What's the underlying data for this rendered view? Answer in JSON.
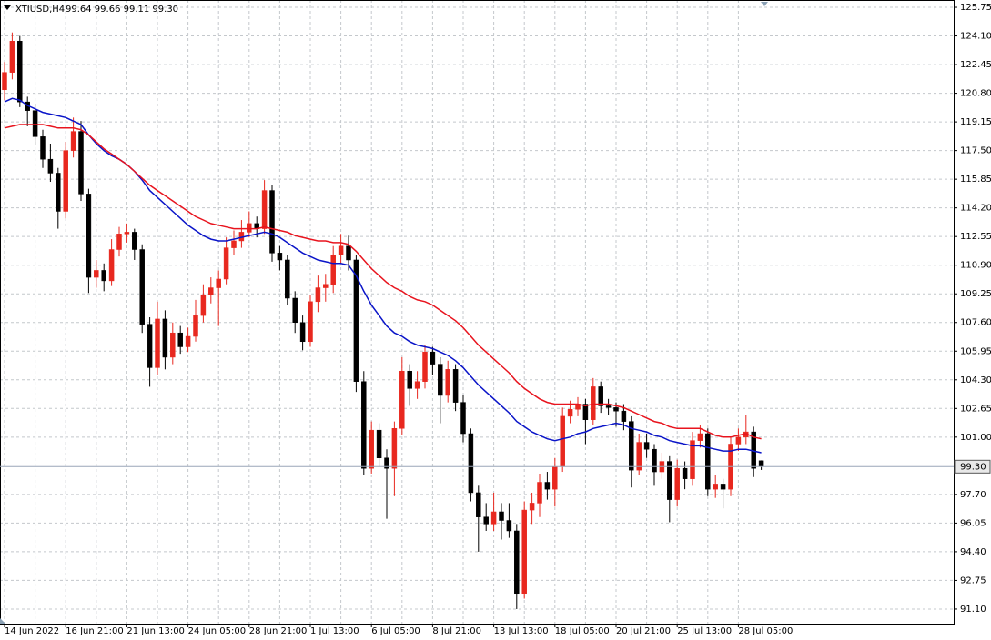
{
  "chart_data": {
    "type": "candlestick",
    "title": "XTIUSD,H4",
    "subtitle": "99.64 99.66 99.11 99.30",
    "categories": [
      "14 Jun 2022",
      null,
      null,
      null,
      null,
      null,
      null,
      null,
      "16 Jun 21:00",
      null,
      null,
      null,
      null,
      null,
      null,
      null,
      "21 Jun 13:00",
      null,
      null,
      null,
      null,
      null,
      null,
      null,
      "24 Jun 05:00",
      null,
      null,
      null,
      null,
      null,
      null,
      null,
      "28 Jun 21:00",
      null,
      null,
      null,
      null,
      null,
      null,
      null,
      "1 Jul 13:00",
      null,
      null,
      null,
      null,
      null,
      null,
      null,
      "6 Jul 05:00",
      null,
      null,
      null,
      null,
      null,
      null,
      null,
      "8 Jul 21:00",
      null,
      null,
      null,
      null,
      null,
      null,
      null,
      "13 Jul 13:00",
      null,
      null,
      null,
      null,
      null,
      null,
      null,
      "18 Jul 05:00",
      null,
      null,
      null,
      null,
      null,
      null,
      null,
      "20 Jul 21:00",
      null,
      null,
      null,
      null,
      null,
      null,
      null,
      "25 Jul 13:00",
      null,
      null,
      null,
      null,
      null,
      null,
      null,
      "28 Jul 05:00",
      null,
      null,
      null
    ],
    "open": [
      121.0,
      122.0,
      123.8,
      120.3,
      119.8,
      118.3,
      117.0,
      116.2,
      114.0,
      117.5,
      118.6,
      115.0,
      110.2,
      110.6,
      110.0,
      111.8,
      112.7,
      112.8,
      111.8,
      107.5,
      105.0,
      107.8,
      105.6,
      107.0,
      106.2,
      106.8,
      108.0,
      109.2,
      109.6,
      110.1,
      111.9,
      112.3,
      112.8,
      113.3,
      113.0,
      115.2,
      111.6,
      111.2,
      109.0,
      107.6,
      106.5,
      108.8,
      109.6,
      109.8,
      111.5,
      112.0,
      111.2,
      104.2,
      99.2,
      101.4,
      99.8,
      99.2,
      101.5,
      104.8,
      103.8,
      104.2,
      105.9,
      105.2,
      103.4,
      104.9,
      103.0,
      101.2,
      97.8,
      96.4,
      96.0,
      96.7,
      96.2,
      95.6,
      92.0,
      96.8,
      97.2,
      98.4,
      98.0,
      99.3,
      102.2,
      102.6,
      102.9,
      102.0,
      103.9,
      102.8,
      102.7,
      102.5,
      101.9,
      99.1,
      100.7,
      100.3,
      99.0,
      99.6,
      97.4,
      99.2,
      98.6,
      100.8,
      101.2,
      98.0,
      98.3,
      98.0,
      100.6,
      101.0,
      101.3,
      99.64
    ],
    "high": [
      122.6,
      124.3,
      124.1,
      120.6,
      120.2,
      118.7,
      117.9,
      116.5,
      118.0,
      119.4,
      119.2,
      115.3,
      111.2,
      111.0,
      112.4,
      113.1,
      113.3,
      113.0,
      112.1,
      107.9,
      108.8,
      108.3,
      107.6,
      107.4,
      107.3,
      108.9,
      109.8,
      110.2,
      110.6,
      112.5,
      112.9,
      113.5,
      114.0,
      113.7,
      115.8,
      115.5,
      112.0,
      111.5,
      109.4,
      108.0,
      109.2,
      110.3,
      110.4,
      112.0,
      112.7,
      112.6,
      111.5,
      104.8,
      101.9,
      101.8,
      100.3,
      101.9,
      105.6,
      105.2,
      104.8,
      106.3,
      106.2,
      105.6,
      105.4,
      105.2,
      103.4,
      101.5,
      98.2,
      97.2,
      97.8,
      97.2,
      97.2,
      96.0,
      97.3,
      97.8,
      98.9,
      99.0,
      99.8,
      102.7,
      103.1,
      103.3,
      103.2,
      104.4,
      104.2,
      103.2,
      103.0,
      102.9,
      102.2,
      101.2,
      101.2,
      100.6,
      100.1,
      99.9,
      99.7,
      99.6,
      101.3,
      101.7,
      101.5,
      98.8,
      98.6,
      101.0,
      101.5,
      102.3,
      101.6,
      99.66
    ],
    "low": [
      120.4,
      121.6,
      120.0,
      118.9,
      117.8,
      116.5,
      115.7,
      113.0,
      113.6,
      117.1,
      114.6,
      109.3,
      109.6,
      109.4,
      109.7,
      111.4,
      112.2,
      111.2,
      107.0,
      103.9,
      104.6,
      104.9,
      105.2,
      105.8,
      105.9,
      106.5,
      107.6,
      108.7,
      107.4,
      109.8,
      111.5,
      111.9,
      112.5,
      112.5,
      112.7,
      111.1,
      110.6,
      108.6,
      107.0,
      106.0,
      106.2,
      108.2,
      108.8,
      109.3,
      111.0,
      110.6,
      103.6,
      98.8,
      98.9,
      99.3,
      96.3,
      97.6,
      101.1,
      102.8,
      103.2,
      103.8,
      104.6,
      101.8,
      103.0,
      102.5,
      100.7,
      97.3,
      94.4,
      95.6,
      95.6,
      95.1,
      95.2,
      91.1,
      91.7,
      96.0,
      96.4,
      97.4,
      97.0,
      99.0,
      101.8,
      102.2,
      100.6,
      101.7,
      102.4,
      102.3,
      101.6,
      101.4,
      98.1,
      98.8,
      99.8,
      98.2,
      98.6,
      96.1,
      97.0,
      98.0,
      98.2,
      100.4,
      97.6,
      97.5,
      96.9,
      97.6,
      100.2,
      100.6,
      98.7,
      99.11
    ],
    "close": [
      122.0,
      123.8,
      120.3,
      119.8,
      118.3,
      117.0,
      116.2,
      114.0,
      117.5,
      118.6,
      115.0,
      110.2,
      110.6,
      110.0,
      111.8,
      112.7,
      112.8,
      111.8,
      107.5,
      105.0,
      107.8,
      105.6,
      107.0,
      106.2,
      106.8,
      108.0,
      109.2,
      109.6,
      110.1,
      111.9,
      112.3,
      112.8,
      113.3,
      113.0,
      115.2,
      111.6,
      111.2,
      109.0,
      107.6,
      106.5,
      108.8,
      109.6,
      109.8,
      111.5,
      112.0,
      111.2,
      104.2,
      99.2,
      101.4,
      99.8,
      99.2,
      101.5,
      104.8,
      103.8,
      104.2,
      105.9,
      105.2,
      103.4,
      104.9,
      103.0,
      101.2,
      97.8,
      96.4,
      96.0,
      96.7,
      96.2,
      95.6,
      92.0,
      96.8,
      97.2,
      98.4,
      98.0,
      99.3,
      102.2,
      102.6,
      102.9,
      102.0,
      103.9,
      102.8,
      102.7,
      102.5,
      101.9,
      99.1,
      100.7,
      100.3,
      99.0,
      99.6,
      97.4,
      99.2,
      98.6,
      100.8,
      101.2,
      98.0,
      98.3,
      98.0,
      100.6,
      101.0,
      101.3,
      99.2,
      99.3
    ],
    "up_color": "#e8281f",
    "down_color": "#000000",
    "overlays": [
      {
        "color": "#0a14c8",
        "values": [
          120.3,
          120.5,
          120.4,
          120.1,
          119.9,
          119.7,
          119.6,
          119.5,
          119.4,
          119.2,
          119.0,
          118.4,
          117.9,
          117.5,
          117.2,
          117.0,
          116.7,
          116.3,
          115.8,
          115.2,
          114.8,
          114.4,
          114.0,
          113.6,
          113.2,
          112.9,
          112.6,
          112.4,
          112.3,
          112.3,
          112.4,
          112.5,
          112.6,
          112.7,
          112.8,
          112.7,
          112.5,
          112.2,
          111.9,
          111.6,
          111.4,
          111.2,
          111.1,
          111.0,
          111.0,
          110.9,
          110.3,
          109.4,
          108.6,
          108.0,
          107.4,
          107.0,
          106.8,
          106.5,
          106.3,
          106.2,
          106.1,
          105.9,
          105.7,
          105.4,
          105.0,
          104.5,
          104.0,
          103.6,
          103.2,
          102.8,
          102.4,
          101.9,
          101.6,
          101.3,
          101.1,
          100.9,
          100.8,
          100.9,
          101.0,
          101.2,
          101.3,
          101.5,
          101.6,
          101.7,
          101.8,
          101.7,
          101.5,
          101.4,
          101.3,
          101.1,
          101.0,
          100.8,
          100.7,
          100.6,
          100.5,
          100.5,
          100.4,
          100.3,
          100.2,
          100.2,
          100.3,
          100.3,
          100.2,
          100.1
        ]
      },
      {
        "color": "#e8141e",
        "values": [
          118.8,
          118.9,
          119.0,
          119.0,
          119.0,
          119.0,
          118.9,
          118.8,
          118.8,
          118.8,
          118.7,
          118.4,
          118.0,
          117.6,
          117.3,
          117.0,
          116.7,
          116.3,
          115.9,
          115.5,
          115.2,
          114.9,
          114.6,
          114.3,
          114.0,
          113.7,
          113.5,
          113.3,
          113.2,
          113.1,
          113.0,
          113.0,
          113.0,
          113.0,
          113.1,
          113.0,
          112.9,
          112.8,
          112.6,
          112.5,
          112.4,
          112.3,
          112.3,
          112.2,
          112.2,
          112.1,
          111.7,
          111.2,
          110.7,
          110.3,
          109.9,
          109.6,
          109.4,
          109.1,
          108.9,
          108.8,
          108.6,
          108.3,
          108.0,
          107.7,
          107.3,
          106.8,
          106.3,
          105.9,
          105.5,
          105.1,
          104.7,
          104.2,
          103.8,
          103.5,
          103.2,
          103.0,
          102.9,
          102.9,
          102.9,
          102.9,
          102.8,
          102.9,
          102.9,
          102.9,
          102.8,
          102.7,
          102.5,
          102.3,
          102.1,
          101.9,
          101.8,
          101.6,
          101.5,
          101.5,
          101.5,
          101.5,
          101.3,
          101.1,
          101.0,
          101.0,
          101.1,
          101.2,
          101.0,
          100.9
        ]
      }
    ],
    "price_line": {
      "value": 99.3,
      "label": "99.30"
    },
    "ylim": [
      90.26,
      126.17
    ],
    "yticks": [
      125.75,
      {
        "value": 124.1,
        "label": "124.10"
      },
      122.45,
      {
        "value": 120.8,
        "label": "120.80"
      },
      119.15,
      {
        "value": 117.5,
        "label": "117.50"
      },
      115.85,
      {
        "value": 114.2,
        "label": "114.20"
      },
      112.55,
      {
        "value": 110.9,
        "label": "110.90"
      },
      109.25,
      {
        "value": 107.6,
        "label": "107.60"
      },
      105.95,
      {
        "value": 104.3,
        "label": "104.30"
      },
      102.65,
      {
        "value": 101.0,
        "label": "101.00"
      },
      {
        "value": 97.7,
        "label": "97.70"
      },
      96.05,
      {
        "value": 94.4,
        "label": "94.40"
      },
      92.75,
      {
        "value": 91.1,
        "label": "91.10"
      }
    ],
    "grid": true
  }
}
